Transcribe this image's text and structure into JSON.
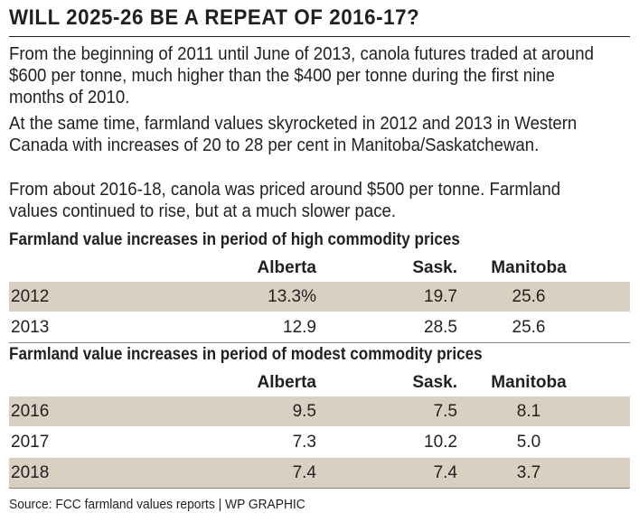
{
  "headline": "WILL 2025-26 BE A REPEAT OF 2016-17?",
  "paragraphs": {
    "p1": "From the beginning of 2011 until June of 2013, canola futures traded at around $600 per tonne, much higher than the $400 per tonne during the first nine months of 2010.",
    "p2": "At the same time, farmland values skyrocketed in 2012 and 2013 in Western Canada with increases of 20 to 28 per cent in Manitoba/Saskatchewan.",
    "p3": "From about 2016-18, canola was priced around $500 per tonne. Farmland values continued to rise, but at a much slower pace."
  },
  "table_high": {
    "title": "Farmland value increases in period of high commodity  prices",
    "headers": {
      "year": "",
      "alberta": "Alberta",
      "sask": "Sask.",
      "manitoba": "Manitoba"
    },
    "rows": [
      {
        "year": "2012",
        "alberta": "13.3%",
        "sask": "19.7",
        "manitoba": "25.6"
      },
      {
        "year": "2013",
        "alberta": "12.9",
        "sask": "28.5",
        "manitoba": "25.6"
      }
    ]
  },
  "table_modest": {
    "title": "Farmland value increases in period of modest commodity prices",
    "headers": {
      "year": "",
      "alberta": "Alberta",
      "sask": "Sask.",
      "manitoba": "Manitoba"
    },
    "rows": [
      {
        "year": "2016",
        "alberta": "9.5",
        "sask": "7.5",
        "manitoba": "8.1"
      },
      {
        "year": "2017",
        "alberta": "7.3",
        "sask": "10.2",
        "manitoba": "5.0"
      },
      {
        "year": "2018",
        "alberta": "7.4",
        "sask": "7.4",
        "manitoba": "3.7"
      }
    ]
  },
  "source": "Source: FCC farmland values reports  |  WP GRAPHIC",
  "colors": {
    "shaded_row": "#d9d0c1",
    "text": "#231f20"
  }
}
